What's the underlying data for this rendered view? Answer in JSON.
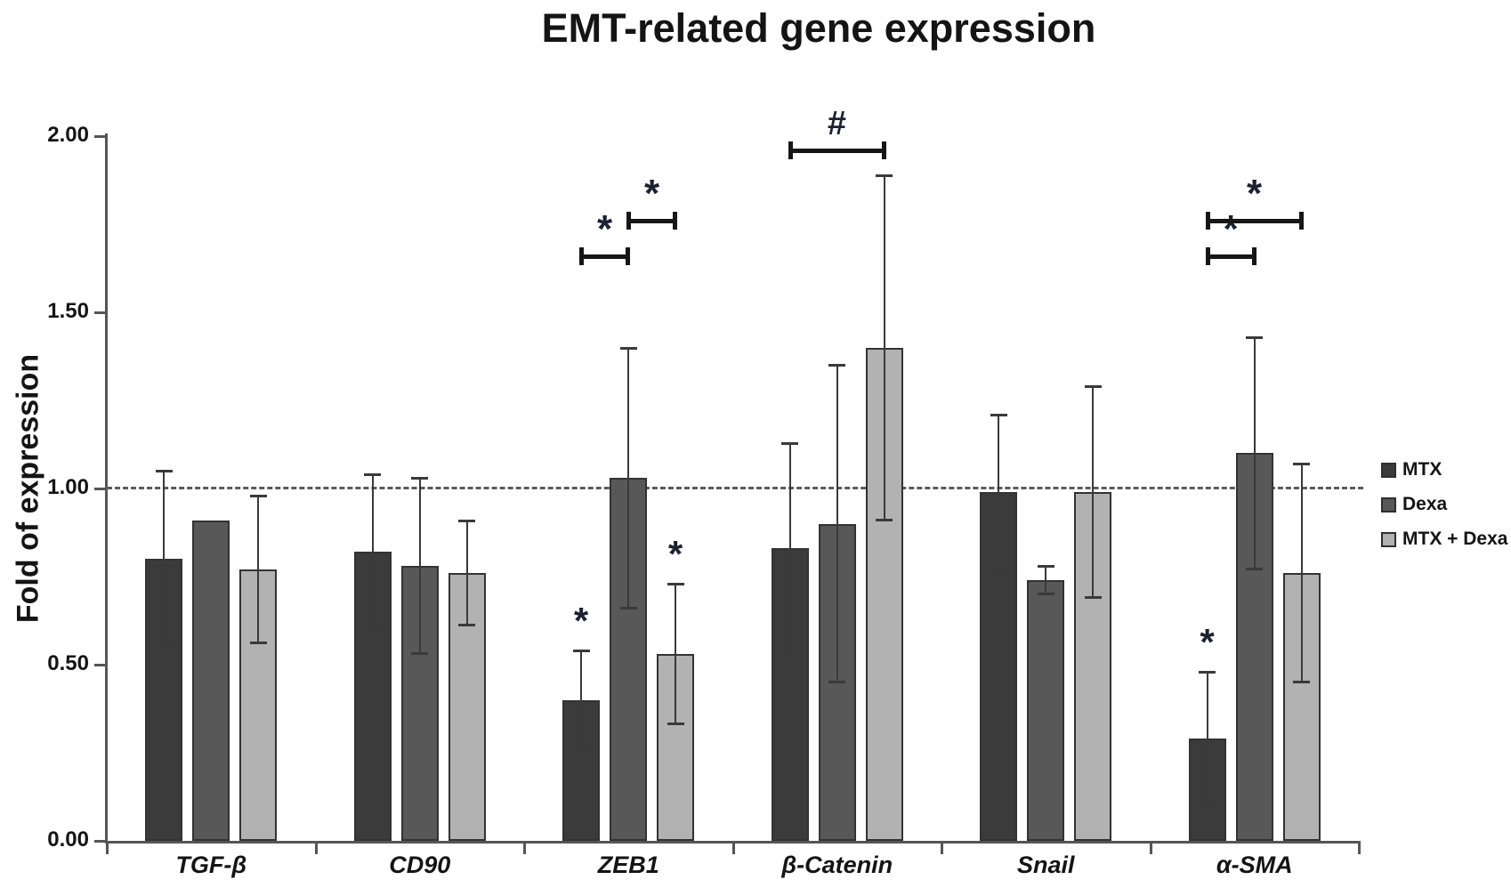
{
  "title": "EMT-related gene expression",
  "y_axis": {
    "label": "Fold of expression",
    "tick_labels": [
      "0.00",
      "0.50",
      "1.00",
      "1.50",
      "2.00"
    ]
  },
  "legend": [
    {
      "label": "MTX",
      "color": "#3b3b3b"
    },
    {
      "label": "Dexa",
      "color": "#585858"
    },
    {
      "label": "MTX + Dexa",
      "color": "#b2b2b2"
    }
  ],
  "chart_data": {
    "type": "bar",
    "title": "EMT-related gene expression",
    "xlabel": "",
    "ylabel": "Fold of expression",
    "ylim": [
      0,
      2
    ],
    "yticks": [
      0,
      0.5,
      1,
      1.5,
      2
    ],
    "ytick_labels": [
      "0.00",
      "0.50",
      "1.00",
      "1.50",
      "2.00"
    ],
    "grid": false,
    "legend_position": "right",
    "reference_line": 1.0,
    "categories": [
      "TGF-β",
      "CD90",
      "ZEB1",
      "β-Catenin",
      "Snail",
      "α-SMA"
    ],
    "series": [
      {
        "name": "MTX",
        "color": "#3b3b3b",
        "values": [
          0.8,
          0.82,
          0.4,
          0.83,
          0.99,
          0.29
        ],
        "err_low": [
          0.55,
          0.6,
          0.26,
          0.53,
          0.77,
          0.1
        ],
        "err_high": [
          1.05,
          1.04,
          0.54,
          1.13,
          1.21,
          0.48
        ]
      },
      {
        "name": "Dexa",
        "color": "#585858",
        "values": [
          0.91,
          0.78,
          1.03,
          0.9,
          0.74,
          1.1
        ],
        "err_low": [
          null,
          0.53,
          0.66,
          0.45,
          0.7,
          0.77
        ],
        "err_high": [
          null,
          1.03,
          1.4,
          1.35,
          0.78,
          1.43
        ]
      },
      {
        "name": "MTX + Dexa",
        "color": "#b2b2b2",
        "values": [
          0.77,
          0.76,
          0.53,
          1.4,
          0.99,
          0.76
        ],
        "err_low": [
          0.56,
          0.61,
          0.33,
          0.91,
          0.69,
          0.45
        ],
        "err_high": [
          0.98,
          0.91,
          0.73,
          1.89,
          1.29,
          1.07
        ]
      }
    ],
    "bar_stars": [
      {
        "category": "ZEB1",
        "series": "MTX",
        "symbol": "*"
      },
      {
        "category": "ZEB1",
        "series": "MTX + Dexa",
        "symbol": "*"
      },
      {
        "category": "α-SMA",
        "series": "MTX",
        "symbol": "*"
      }
    ],
    "brackets": [
      {
        "category": "ZEB1",
        "from": "MTX",
        "to": "Dexa",
        "y": 1.66,
        "symbol": "*"
      },
      {
        "category": "ZEB1",
        "from": "Dexa",
        "to": "MTX + Dexa",
        "y": 1.76,
        "symbol": "*"
      },
      {
        "category": "β-Catenin",
        "from": "MTX",
        "to": "MTX + Dexa",
        "y": 1.96,
        "symbol": "#"
      },
      {
        "category": "α-SMA",
        "from": "MTX",
        "to": "Dexa",
        "y": 1.66,
        "symbol": "*"
      },
      {
        "category": "α-SMA",
        "from": "MTX",
        "to": "MTX + Dexa",
        "y": 1.76,
        "symbol": "*"
      }
    ]
  }
}
